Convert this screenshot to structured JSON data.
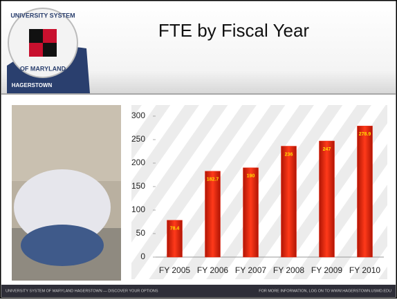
{
  "logo": {
    "top": "UNIVERSITY SYSTEM",
    "bottom": "OF MARYLAND",
    "campus": "HAGERSTOWN"
  },
  "chart_data": {
    "type": "bar",
    "title": "FTE by Fiscal Year",
    "categories": [
      "FY 2005",
      "FY 2006",
      "FY 2007",
      "FY 2008",
      "FY 2009",
      "FY 2010"
    ],
    "values": [
      78.4,
      182.7,
      190,
      236,
      247,
      278.9
    ],
    "color": "#e8200a",
    "ylim": [
      0,
      300
    ],
    "yticks": [
      0,
      50,
      100,
      150,
      200,
      250,
      300
    ],
    "grid": false
  },
  "footer": {
    "left": "UNIVERSITY SYSTEM OF MARYLAND HAGERSTOWN  —  DISCOVER YOUR OPTIONS",
    "right": "FOR MORE INFORMATION, LOG ON TO WWW.HAGERSTOWN.USMD.EDU"
  }
}
